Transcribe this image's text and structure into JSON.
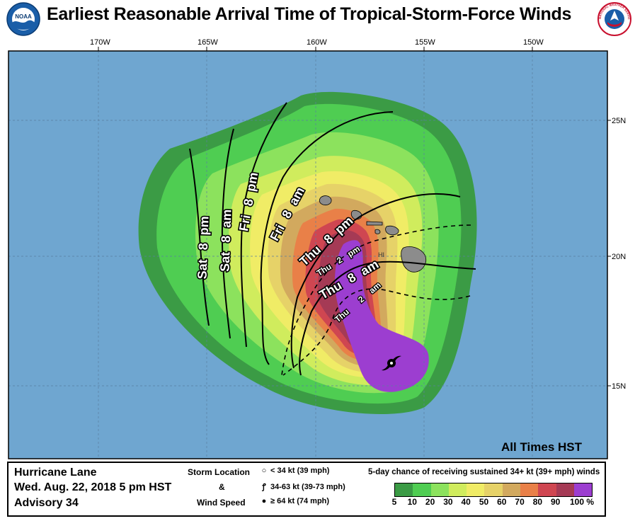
{
  "title": "Earliest Reasonable Arrival Time of Tropical-Storm-Force Winds",
  "logos": {
    "left": "noaa-logo",
    "left_text": "NOAA",
    "right": "nws-logo",
    "right_text": "NATIONAL WEATHER SERVICE"
  },
  "map": {
    "lon_labels": [
      "170W",
      "165W",
      "160W",
      "155W",
      "150W"
    ],
    "lat_labels": [
      "25N",
      "20N",
      "15N"
    ],
    "colors": {
      "ocean": "#6fa6d0",
      "land": "#8c8c8c"
    },
    "island_label": "HI",
    "arrival_times_solid": [
      "Sat 8 pm",
      "Sat 8 am",
      "Fri 8 pm",
      "Fri 8 am",
      "Thu 8 pm",
      "Thu 8 am"
    ],
    "arrival_times_dashed": [
      "Thu 2 pm",
      "Thu 2 am"
    ],
    "iso_labels": {
      "sat_8pm": {
        "day": "Sat",
        "hour": "8",
        "ampm": "pm"
      },
      "sat_8am": {
        "day": "Sat",
        "hour": "8",
        "ampm": "am"
      },
      "fri_8pm": {
        "day": "Fri",
        "hour": "8",
        "ampm": "pm"
      },
      "fri_8am": {
        "day": "Fri",
        "hour": "8",
        "ampm": "am"
      },
      "thu_8pm": {
        "day": "Thu",
        "hour": "8",
        "ampm": "pm"
      },
      "thu_2pm": {
        "day": "Thu",
        "hour": "2",
        "ampm": "pm"
      },
      "thu_8am": {
        "day": "Thu",
        "hour": "8",
        "ampm": "am"
      },
      "thu_2am": {
        "day": "Thu",
        "hour": "2",
        "ampm": "am"
      }
    },
    "all_times_note": "All Times HST",
    "storm_symbol": "hurricane-symbol"
  },
  "legend": {
    "storm_name": "Hurricane Lane",
    "issued": "Wed. Aug. 22, 2018  5 pm HST",
    "advisory": "Advisory 34",
    "storm_location_label": "Storm Location",
    "and_label": "&",
    "wind_speed_label": "Wind Speed",
    "wind_classes": [
      {
        "symbol": "open-circle-icon",
        "label": "< 34 kt (39 mph)"
      },
      {
        "symbol": "tropical-storm-icon",
        "label": "34-63 kt (39-73 mph)"
      },
      {
        "symbol": "hurricane-icon",
        "label": "≥ 64 kt (74 mph)"
      }
    ],
    "prob_title": "5-day chance of receiving sustained 34+ kt (39+ mph) winds",
    "prob_ticks": [
      "5",
      "10",
      "20",
      "30",
      "40",
      "50",
      "60",
      "70",
      "80",
      "90",
      "100 %"
    ],
    "prob_colors": [
      "#3b9b45",
      "#4fcd52",
      "#8ce25d",
      "#d0ec5d",
      "#f0ec66",
      "#e6d268",
      "#d2a95e",
      "#e98048",
      "#cf4651",
      "#a53a55",
      "#9c3ed0"
    ]
  }
}
